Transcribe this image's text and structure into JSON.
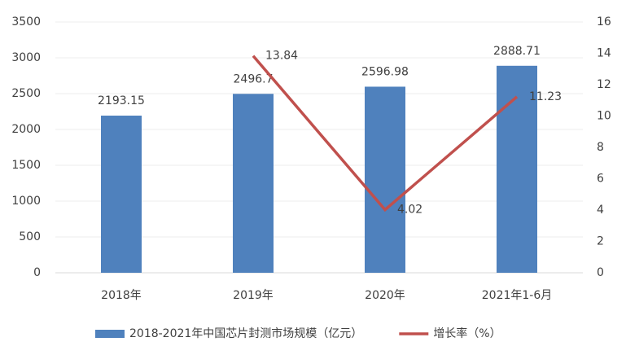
{
  "chart_data": {
    "type": "bar",
    "categories": [
      "2018年",
      "2019年",
      "2020年",
      "2021年1-6月"
    ],
    "series": [
      {
        "name": "2018-2021年中国芯片封测市场规模（亿元）",
        "type": "bar",
        "color": "#4f81bd",
        "values": [
          2193.15,
          2496.7,
          2596.98,
          2888.71
        ]
      },
      {
        "name": "增长率（%）",
        "type": "line",
        "axis": "y2",
        "color": "#c0504d",
        "values": [
          null,
          13.84,
          4.02,
          11.23
        ]
      }
    ],
    "ylim": [
      0,
      3500
    ],
    "yticks": [
      0,
      500,
      1000,
      1500,
      2000,
      2500,
      3000,
      3500
    ],
    "y2lim": [
      0,
      16
    ],
    "y2ticks": [
      0,
      2,
      4,
      6,
      8,
      10,
      12,
      14,
      16
    ],
    "grid": true,
    "legend": "bottom"
  }
}
